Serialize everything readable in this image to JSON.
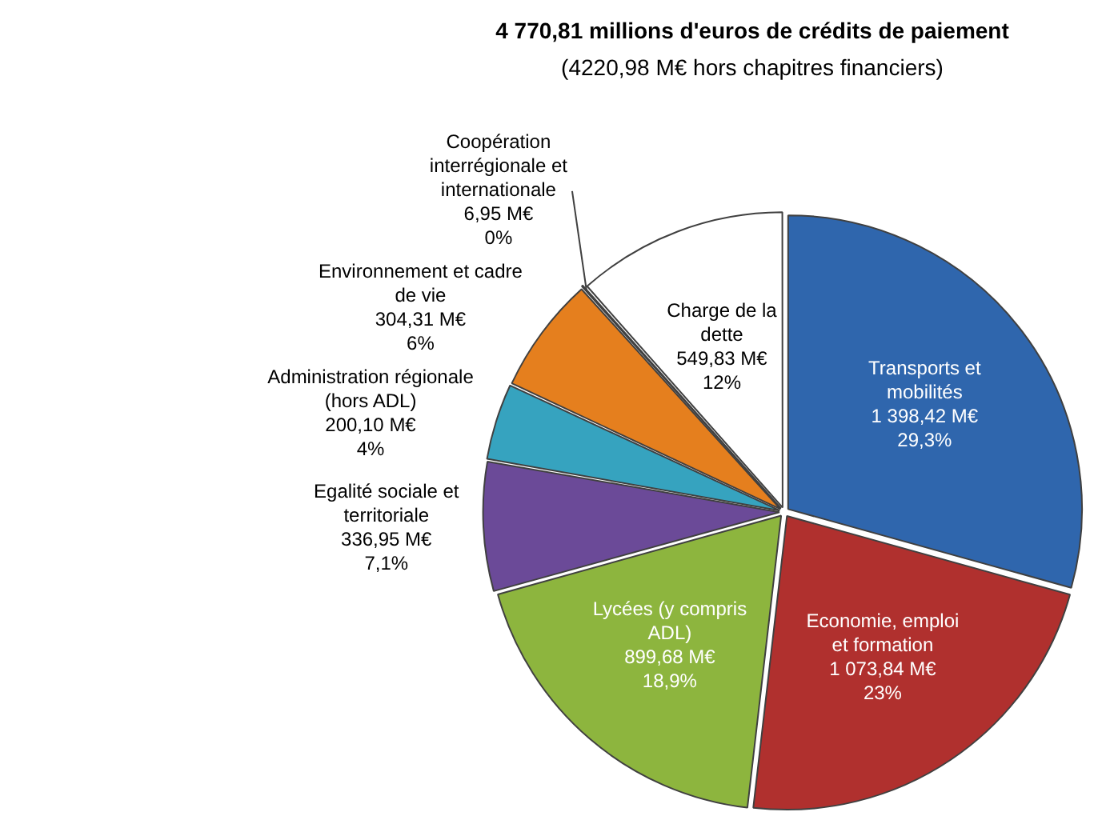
{
  "chart_data": {
    "type": "pie",
    "title": "4 770,81 millions d'euros de crédits de paiement",
    "subtitle": "(4220,98 M€ hors chapitres financiers)",
    "categories": [
      "Transports et mobilités",
      "Economie, emploi et formation",
      "Lycées (y compris ADL)",
      "Egalité sociale et territoriale",
      "Administration régionale (hors ADL)",
      "Environnement et cadre de vie",
      "Coopération interrégionale et internationale",
      "Charge de la dette"
    ],
    "values": [
      1398.42,
      1073.84,
      899.68,
      336.95,
      200.1,
      304.31,
      6.95,
      549.83
    ],
    "value_labels": [
      "1 398,42 M€\n29,3%",
      "1 073,84 M€\n23%",
      "899,68 M€\n18,9%",
      "336,95 M€\n7,1%",
      "200,10 M€\n4%",
      "304,31 M€\n6%",
      "6,95 M€\n0%",
      "549,83 M€\n12%"
    ],
    "colors": [
      "#2f66ad",
      "#b0302e",
      "#8db53e",
      "#6b4a98",
      "#36a3bf",
      "#e57f1e",
      "#ffffff",
      "#ffffff"
    ],
    "legend": false
  }
}
